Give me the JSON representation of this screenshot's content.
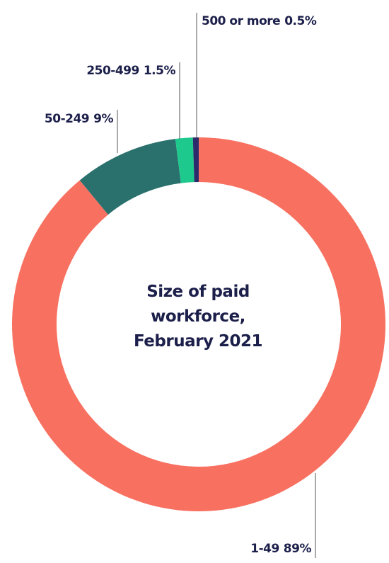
{
  "chart_data": {
    "type": "donut",
    "title": "Size of paid workforce, February 2021",
    "categories": [
      "1-49",
      "50-249",
      "250-499",
      "500 or more"
    ],
    "values": [
      89,
      9,
      1.5,
      0.5
    ],
    "value_labels": [
      "89%",
      "9%",
      "1.5%",
      "0.5%"
    ],
    "colors": [
      "#f87060",
      "#2a716e",
      "#1ec98d",
      "#2d2a6b"
    ]
  }
}
